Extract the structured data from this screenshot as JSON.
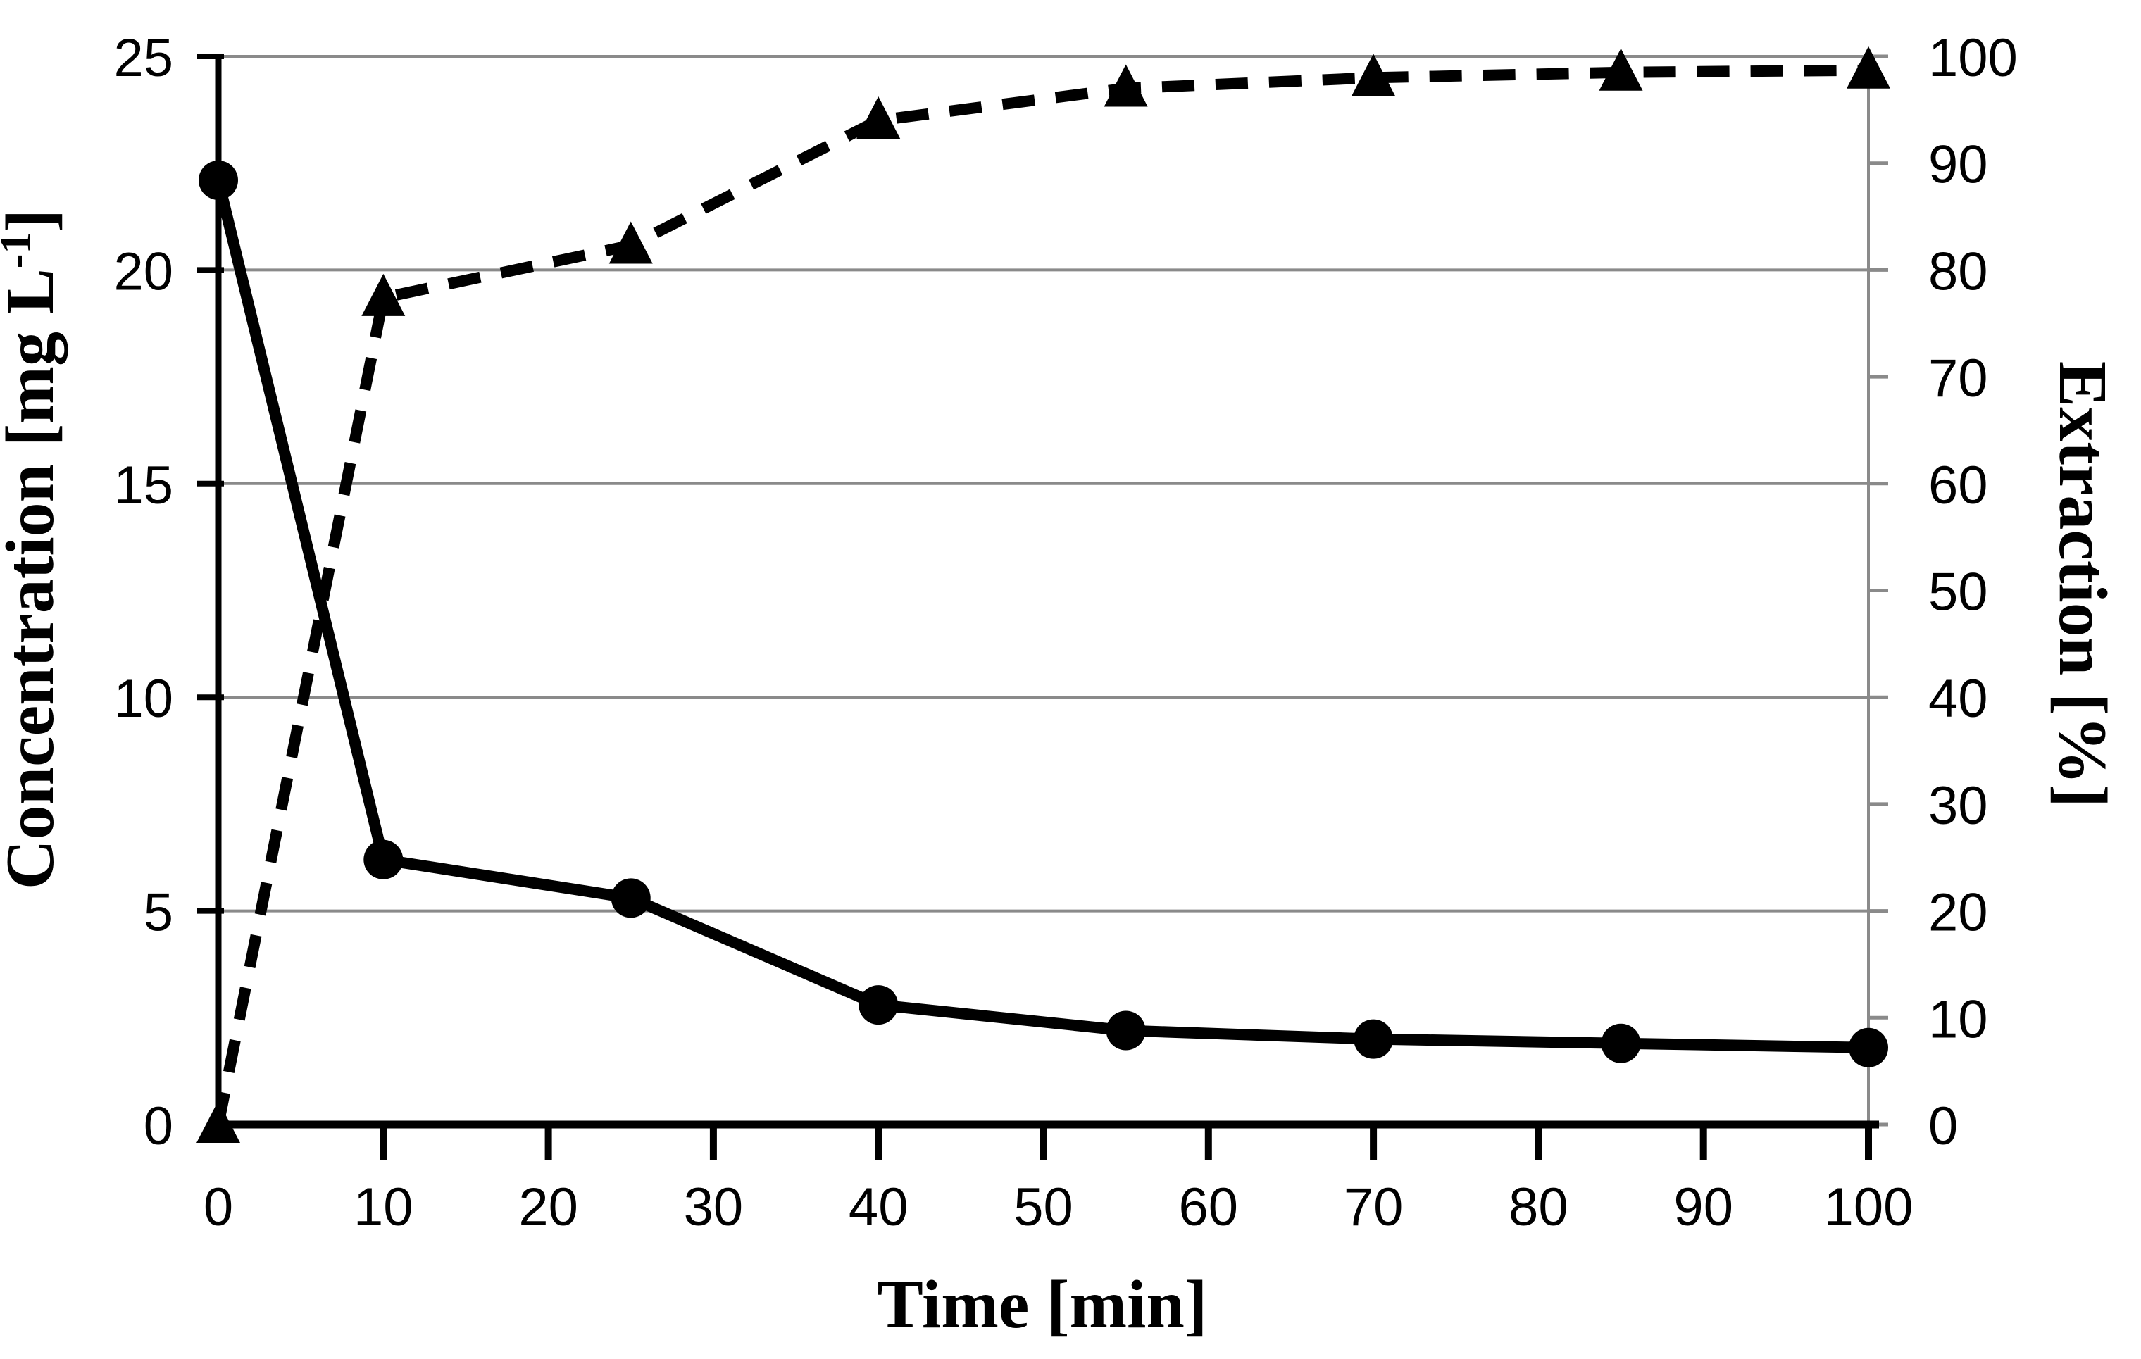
{
  "figure": {
    "background": "#ffffff",
    "series_color": "#000000",
    "grid_color": "#8a8a8a",
    "axis_color": "#000000"
  },
  "chart_data": {
    "type": "line",
    "x": [
      0,
      10,
      25,
      40,
      55,
      70,
      85,
      100
    ],
    "series": [
      {
        "name": "Concentration",
        "axis": "left",
        "marker": "circle",
        "line_style": "solid",
        "color": "#000000",
        "values": [
          22.1,
          6.2,
          5.3,
          2.8,
          2.2,
          2.0,
          1.9,
          1.8
        ]
      },
      {
        "name": "Extraction",
        "axis": "right",
        "marker": "triangle",
        "line_style": "dashed",
        "color": "#000000",
        "values": [
          0,
          77.4,
          82.3,
          94,
          97,
          98,
          98.5,
          98.7
        ]
      }
    ],
    "title": "",
    "xlabel": "Time [min]",
    "ylabel_left": {
      "main": "Concentration [mg L",
      "sup": "-1",
      "close": "]"
    },
    "ylabel_right": "Extraction [%]",
    "xlim": [
      0,
      100
    ],
    "ylim_left": [
      0,
      25
    ],
    "ylim_right": [
      0,
      100
    ],
    "x_ticks": [
      0,
      10,
      20,
      30,
      40,
      50,
      60,
      70,
      80,
      90,
      100
    ],
    "left_ticks": [
      0,
      5,
      10,
      15,
      20,
      25
    ],
    "right_ticks": [
      0,
      10,
      20,
      30,
      40,
      50,
      60,
      70,
      80,
      90,
      100
    ],
    "gridlines_at_left_values": [
      5,
      10,
      15,
      20,
      25
    ],
    "grid": "horizontal",
    "legend": "none"
  }
}
